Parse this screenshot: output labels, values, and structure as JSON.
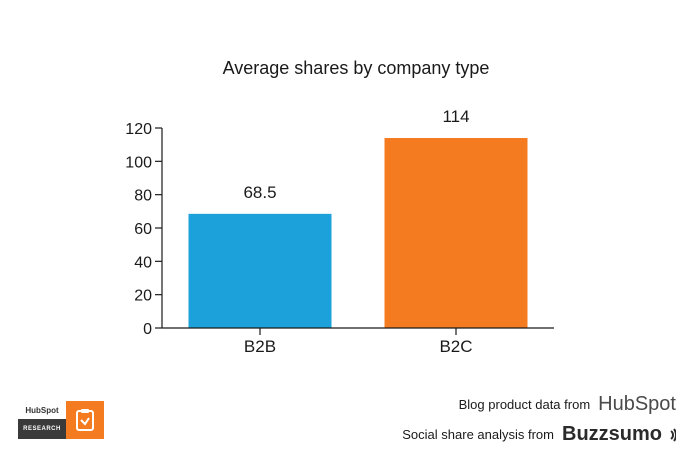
{
  "chart_data": {
    "type": "bar",
    "title": "Average shares by company type",
    "categories": [
      "B2B",
      "B2C"
    ],
    "values": [
      68.5,
      114
    ],
    "data_labels": [
      "68.5",
      "114"
    ],
    "colors": [
      "#1da1db",
      "#f47b20"
    ],
    "ylim": [
      0,
      120
    ],
    "yticks": [
      0,
      20,
      40,
      60,
      80,
      100,
      120
    ],
    "xlabel": "",
    "ylabel": "",
    "grid": false
  },
  "badge": {
    "brand": "HubSpot",
    "label": "RESEARCH",
    "color": "#f47b20"
  },
  "credits": {
    "line1_text": "Blog product data from",
    "line1_logo": "HubSpot",
    "line2_text": "Social share analysis from",
    "line2_logo": "Buzzsumo"
  }
}
